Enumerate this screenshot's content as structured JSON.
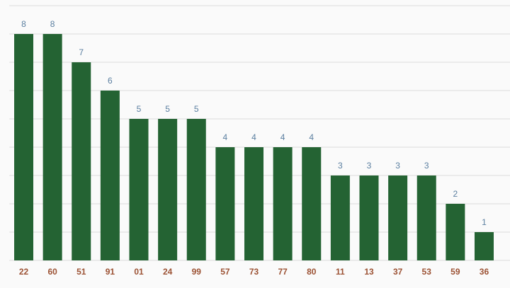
{
  "chart_data": {
    "type": "bar",
    "categories": [
      "22",
      "60",
      "51",
      "91",
      "01",
      "24",
      "99",
      "57",
      "73",
      "77",
      "80",
      "11",
      "13",
      "37",
      "53",
      "59",
      "36"
    ],
    "values": [
      8,
      8,
      7,
      6,
      5,
      5,
      5,
      4,
      4,
      4,
      4,
      3,
      3,
      3,
      3,
      2,
      1
    ],
    "color": "#246333",
    "ylim": [
      0,
      9
    ],
    "yticks": [
      0,
      1,
      2,
      3,
      4,
      5,
      6,
      7,
      8,
      9
    ],
    "grid": true
  }
}
